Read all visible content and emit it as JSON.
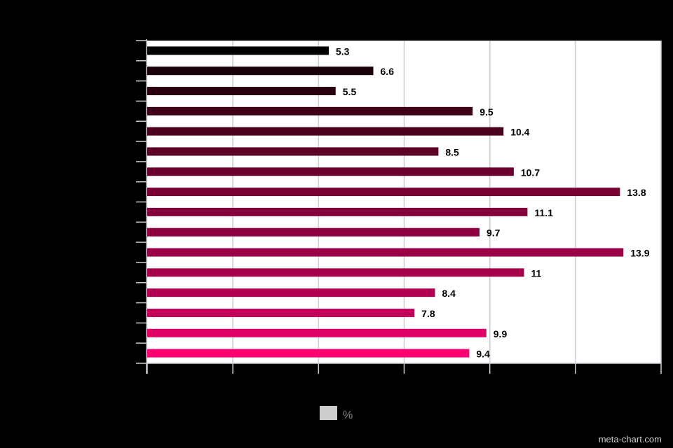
{
  "chart_data": {
    "type": "bar",
    "orientation": "horizontal",
    "values": [
      5.3,
      6.6,
      5.5,
      9.5,
      10.4,
      8.5,
      10.7,
      13.8,
      11.1,
      9.7,
      13.9,
      11,
      8.4,
      7.8,
      9.9,
      9.4
    ],
    "value_labels": [
      "5.3",
      "6.6",
      "5.5",
      "9.5",
      "10.4",
      "8.5",
      "10.7",
      "13.8",
      "11.1",
      "9.7",
      "13.9",
      "11",
      "8.4",
      "7.8",
      "9.9",
      "9.4"
    ],
    "xlim": [
      0,
      15
    ],
    "grid": true,
    "legend_position": "bottom",
    "series_name": "%",
    "bar_colors": [
      "#000000",
      "#1a0008",
      "#2a000f",
      "#3d0017",
      "#4e001f",
      "#5c0026",
      "#6b002d",
      "#7a0034",
      "#84003a",
      "#8f0040",
      "#990045",
      "#a6004b",
      "#b30052",
      "#c4005a",
      "#e00066",
      "#ff0073"
    ],
    "legend_swatch_color": "#cccccc",
    "plot_background": "#ffffff",
    "grid_color": "#c8ccd4"
  },
  "watermark": "meta-chart.com"
}
